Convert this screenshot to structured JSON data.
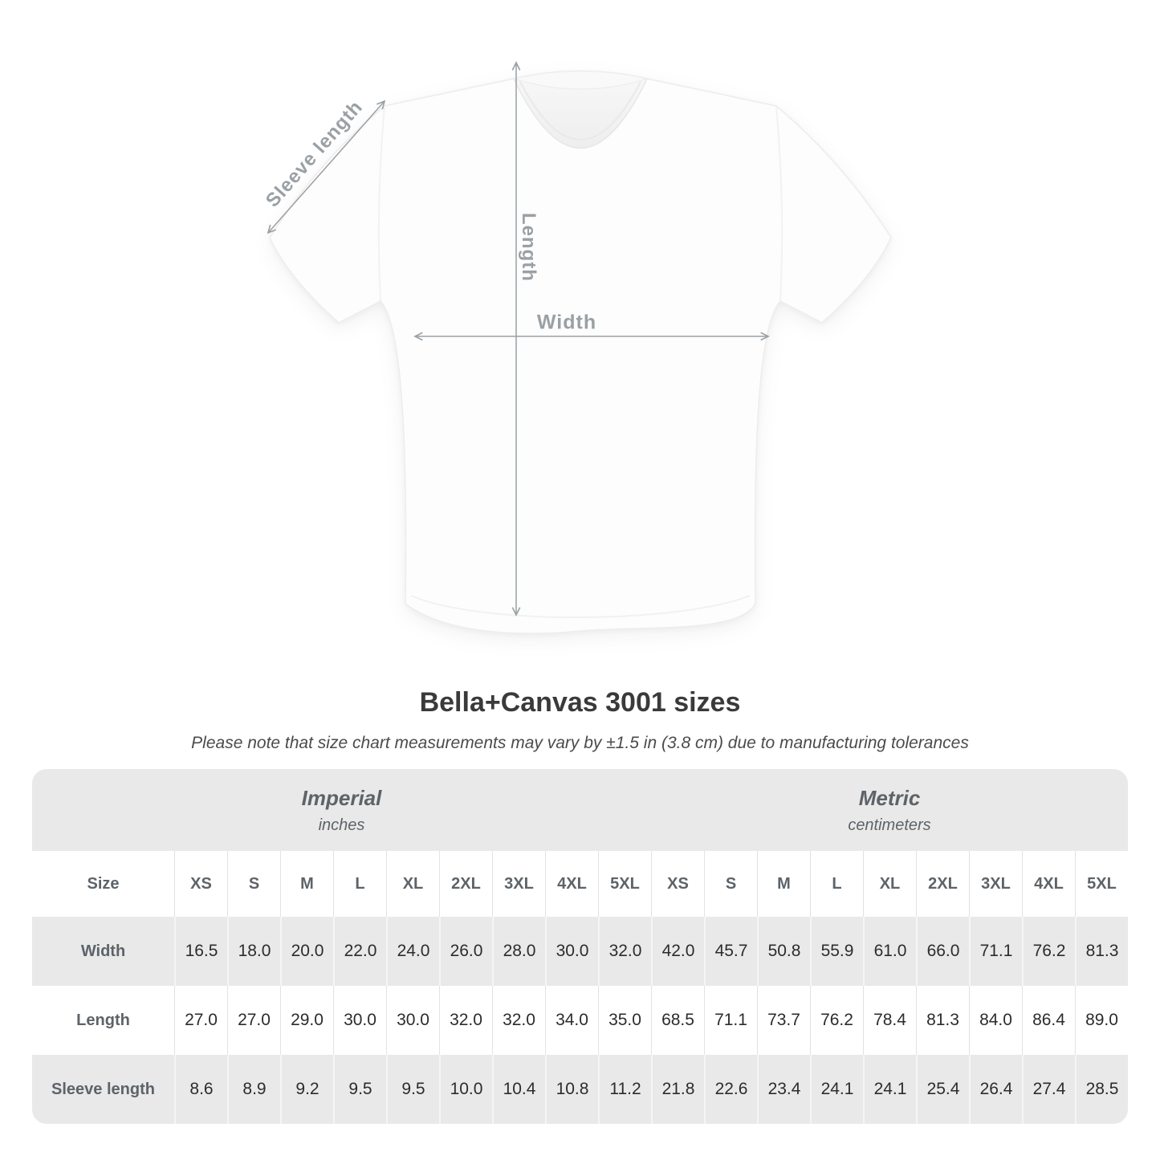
{
  "diagram": {
    "sleeve_label": "Sleeve length",
    "length_label": "Length",
    "width_label": "Width",
    "label_color": "#9aa0a4",
    "arrow_color": "#9aa0a4",
    "shirt_color": "#fdfdfd"
  },
  "title": "Bella+Canvas 3001 sizes",
  "subtitle": "Please note that size chart measurements may vary by ±1.5 in (3.8 cm) due to manufacturing tolerances",
  "table": {
    "size_header": "Size",
    "groups": [
      {
        "label": "Imperial",
        "unit": "inches"
      },
      {
        "label": "Metric",
        "unit": "centimeters"
      }
    ],
    "sizes": [
      "XS",
      "S",
      "M",
      "L",
      "XL",
      "2XL",
      "3XL",
      "4XL",
      "5XL"
    ],
    "rows": [
      {
        "label": "Width",
        "imperial": [
          "16.5",
          "18.0",
          "20.0",
          "22.0",
          "24.0",
          "26.0",
          "28.0",
          "30.0",
          "32.0"
        ],
        "metric": [
          "42.0",
          "45.7",
          "50.8",
          "55.9",
          "61.0",
          "66.0",
          "71.1",
          "76.2",
          "81.3"
        ]
      },
      {
        "label": "Length",
        "imperial": [
          "27.0",
          "27.0",
          "29.0",
          "30.0",
          "30.0",
          "32.0",
          "32.0",
          "34.0",
          "35.0"
        ],
        "metric": [
          "68.5",
          "71.1",
          "73.7",
          "76.2",
          "78.4",
          "81.3",
          "84.0",
          "86.4",
          "89.0"
        ]
      },
      {
        "label": "Sleeve length",
        "imperial": [
          "8.6",
          "8.9",
          "9.2",
          "9.5",
          "9.5",
          "10.0",
          "10.4",
          "10.8",
          "11.2"
        ],
        "metric": [
          "21.8",
          "22.6",
          "23.4",
          "24.1",
          "24.1",
          "25.4",
          "26.4",
          "27.4",
          "28.5"
        ]
      }
    ]
  },
  "chart_data": {
    "type": "table",
    "title": "Bella+Canvas 3001 sizes",
    "note": "Please note that size chart measurements may vary by ±1.5 in (3.8 cm) due to manufacturing tolerances",
    "column_groups": [
      "Imperial (inches)",
      "Metric (centimeters)"
    ],
    "sizes": [
      "XS",
      "S",
      "M",
      "L",
      "XL",
      "2XL",
      "3XL",
      "4XL",
      "5XL"
    ],
    "rows": [
      {
        "measurement": "Width",
        "imperial_in": [
          16.5,
          18.0,
          20.0,
          22.0,
          24.0,
          26.0,
          28.0,
          30.0,
          32.0
        ],
        "metric_cm": [
          42.0,
          45.7,
          50.8,
          55.9,
          61.0,
          66.0,
          71.1,
          76.2,
          81.3
        ]
      },
      {
        "measurement": "Length",
        "imperial_in": [
          27.0,
          27.0,
          29.0,
          30.0,
          30.0,
          32.0,
          32.0,
          34.0,
          35.0
        ],
        "metric_cm": [
          68.5,
          71.1,
          73.7,
          76.2,
          78.4,
          81.3,
          84.0,
          86.4,
          89.0
        ]
      },
      {
        "measurement": "Sleeve length",
        "imperial_in": [
          8.6,
          8.9,
          9.2,
          9.5,
          9.5,
          10.0,
          10.4,
          10.8,
          11.2
        ],
        "metric_cm": [
          21.8,
          22.6,
          23.4,
          24.1,
          24.1,
          25.4,
          26.4,
          27.4,
          28.5
        ]
      }
    ]
  }
}
